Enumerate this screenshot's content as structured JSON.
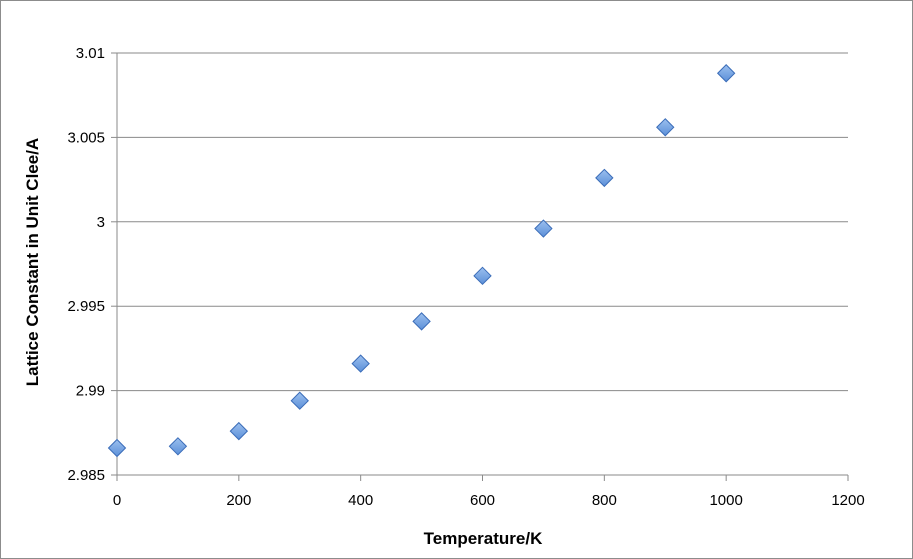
{
  "chart_data": {
    "type": "scatter",
    "title": "",
    "xlabel": "Temperature/K",
    "ylabel": "Lattice Constant in Unit Clee/A",
    "xlim": [
      0,
      1200
    ],
    "ylim": [
      2.985,
      3.01
    ],
    "x_ticks": [
      "0",
      "200",
      "400",
      "600",
      "800",
      "1000",
      "1200"
    ],
    "y_ticks": [
      "2.985",
      "2.99",
      "2.995",
      "3",
      "3.005",
      "3.01"
    ],
    "x_tick_values": [
      0,
      200,
      400,
      600,
      800,
      1000,
      1200
    ],
    "y_tick_values": [
      2.985,
      2.99,
      2.995,
      3.0,
      3.005,
      3.01
    ],
    "grid": "horizontal",
    "legend": "none",
    "marker": "diamond",
    "marker_color": "#5b8fd8",
    "marker_edge_color": "#3a6cb8",
    "series": [
      {
        "x": [
          0,
          100,
          200,
          300,
          400,
          500,
          600,
          700,
          800,
          900,
          1000
        ],
        "y": [
          2.9866,
          2.9867,
          2.9876,
          2.9894,
          2.9916,
          2.9941,
          2.9968,
          2.9996,
          3.0026,
          3.0056,
          3.0088
        ]
      }
    ]
  }
}
